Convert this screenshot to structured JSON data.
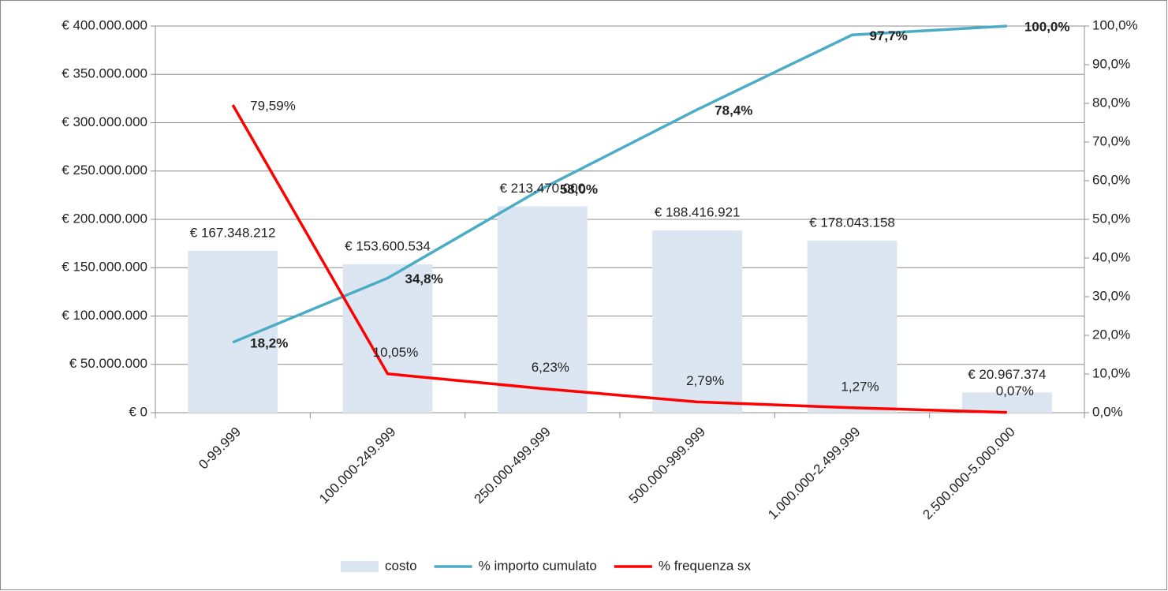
{
  "chart_data": {
    "type": "bar",
    "categories": [
      "0-99.999",
      "100.000-249.999",
      "250.000-499.999",
      "500.000-999.999",
      "1.000.000-2.499.999",
      "2.500.000-5.000.000"
    ],
    "series": [
      {
        "name": "costo",
        "type": "bar",
        "color": "#dce6f2",
        "values": [
          167348212,
          153600534,
          213470000,
          188416921,
          178043158,
          20967374
        ],
        "value_labels": [
          "€ 167.348.212",
          "€ 153.600.534",
          "€ 213.470.000",
          "€ 188.416.921",
          "€ 178.043.158",
          "€ 20.967.374"
        ]
      },
      {
        "name": "% importo cumulato",
        "type": "line",
        "axis": "y2",
        "color": "#4bacc6",
        "values": [
          18.2,
          34.8,
          58.0,
          78.4,
          97.7,
          100.0
        ],
        "value_labels": [
          "18,2%",
          "34,8%",
          "58,0%",
          "78,4%",
          "97,7%",
          "100,0%"
        ]
      },
      {
        "name": "% frequenza sx",
        "type": "line",
        "axis": "y2",
        "color": "#ff0000",
        "values": [
          79.59,
          10.05,
          6.23,
          2.79,
          1.27,
          0.07
        ],
        "value_labels": [
          "79,59%",
          "10,05%",
          "6,23%",
          "2,79%",
          "1,27%",
          "0,07%"
        ]
      }
    ],
    "ylim": [
      0,
      400000000
    ],
    "yticks": [
      {
        "value": 0,
        "label": "€ 0"
      },
      {
        "value": 50000000,
        "label": "€ 50.000.000"
      },
      {
        "value": 100000000,
        "label": "€ 100.000.000"
      },
      {
        "value": 150000000,
        "label": "€ 150.000.000"
      },
      {
        "value": 200000000,
        "label": "€ 200.000.000"
      },
      {
        "value": 250000000,
        "label": "€ 250.000.000"
      },
      {
        "value": 300000000,
        "label": "€ 300.000.000"
      },
      {
        "value": 350000000,
        "label": "€ 350.000.000"
      },
      {
        "value": 400000000,
        "label": "€ 400.000.000"
      }
    ],
    "y2lim": [
      0,
      100
    ],
    "y2ticks": [
      {
        "value": 0,
        "label": "0,0%"
      },
      {
        "value": 10,
        "label": "10,0%"
      },
      {
        "value": 20,
        "label": "20,0%"
      },
      {
        "value": 30,
        "label": "30,0%"
      },
      {
        "value": 40,
        "label": "40,0%"
      },
      {
        "value": 50,
        "label": "50,0%"
      },
      {
        "value": 60,
        "label": "60,0%"
      },
      {
        "value": 70,
        "label": "70,0%"
      },
      {
        "value": 80,
        "label": "80,0%"
      },
      {
        "value": 90,
        "label": "90,0%"
      },
      {
        "value": 100,
        "label": "100,0%"
      }
    ],
    "grid": true,
    "legend": "bottom"
  }
}
